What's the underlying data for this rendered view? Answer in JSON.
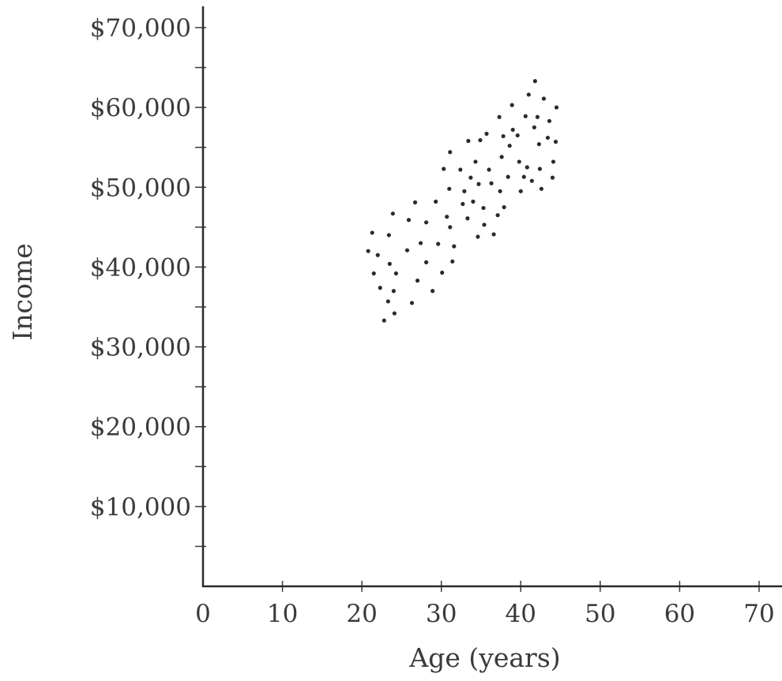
{
  "chart_data": {
    "type": "scatter",
    "title": "",
    "xlabel": "Age (years)",
    "ylabel": "Income",
    "xlim": [
      0,
      70
    ],
    "ylim": [
      0,
      72000
    ],
    "x_ticks": [
      0,
      10,
      20,
      30,
      40,
      50,
      60,
      70
    ],
    "x_tick_labels": [
      "0",
      "10",
      "20",
      "30",
      "40",
      "50",
      "60",
      "70"
    ],
    "y_ticks": [
      10000,
      20000,
      30000,
      40000,
      50000,
      60000,
      70000
    ],
    "y_tick_labels": [
      "$10,000",
      "$20,000",
      "$30,000",
      "$40,000",
      "$50,000",
      "$60,000",
      "$70,000"
    ],
    "y_minor_ticks": [
      5000,
      15000,
      25000,
      35000,
      45000,
      55000,
      65000
    ],
    "grid": false,
    "point_color": "#2b2b2b",
    "axis_color": "#2a2a2a",
    "series": [
      {
        "points": [
          {
            "x": 20.8,
            "y": 42000
          },
          {
            "x": 21.5,
            "y": 39200
          },
          {
            "x": 21.3,
            "y": 44300
          },
          {
            "x": 22.0,
            "y": 41500
          },
          {
            "x": 22.3,
            "y": 37400
          },
          {
            "x": 22.8,
            "y": 33300
          },
          {
            "x": 23.3,
            "y": 35700
          },
          {
            "x": 23.5,
            "y": 40400
          },
          {
            "x": 23.4,
            "y": 44000
          },
          {
            "x": 23.9,
            "y": 46700
          },
          {
            "x": 24.0,
            "y": 37000
          },
          {
            "x": 24.1,
            "y": 34200
          },
          {
            "x": 24.3,
            "y": 39200
          },
          {
            "x": 25.9,
            "y": 45900
          },
          {
            "x": 25.7,
            "y": 42100
          },
          {
            "x": 26.3,
            "y": 35500
          },
          {
            "x": 26.7,
            "y": 48100
          },
          {
            "x": 27.0,
            "y": 38300
          },
          {
            "x": 27.4,
            "y": 43000
          },
          {
            "x": 28.1,
            "y": 45600
          },
          {
            "x": 28.1,
            "y": 40600
          },
          {
            "x": 28.9,
            "y": 37000
          },
          {
            "x": 29.3,
            "y": 48200
          },
          {
            "x": 29.6,
            "y": 42900
          },
          {
            "x": 30.1,
            "y": 39300
          },
          {
            "x": 30.3,
            "y": 52300
          },
          {
            "x": 30.7,
            "y": 46300
          },
          {
            "x": 31.0,
            "y": 49800
          },
          {
            "x": 31.1,
            "y": 45000
          },
          {
            "x": 31.1,
            "y": 54400
          },
          {
            "x": 31.4,
            "y": 40700
          },
          {
            "x": 31.6,
            "y": 42600
          },
          {
            "x": 32.4,
            "y": 52200
          },
          {
            "x": 32.7,
            "y": 47900
          },
          {
            "x": 32.9,
            "y": 49500
          },
          {
            "x": 33.3,
            "y": 46100
          },
          {
            "x": 33.4,
            "y": 55800
          },
          {
            "x": 33.7,
            "y": 51200
          },
          {
            "x": 34.0,
            "y": 48200
          },
          {
            "x": 34.3,
            "y": 53200
          },
          {
            "x": 34.6,
            "y": 43800
          },
          {
            "x": 34.7,
            "y": 50400
          },
          {
            "x": 34.9,
            "y": 55900
          },
          {
            "x": 35.3,
            "y": 47400
          },
          {
            "x": 35.4,
            "y": 45300
          },
          {
            "x": 35.7,
            "y": 56700
          },
          {
            "x": 36.0,
            "y": 52200
          },
          {
            "x": 36.3,
            "y": 50500
          },
          {
            "x": 36.6,
            "y": 44100
          },
          {
            "x": 37.1,
            "y": 46500
          },
          {
            "x": 37.3,
            "y": 58800
          },
          {
            "x": 37.4,
            "y": 49500
          },
          {
            "x": 37.6,
            "y": 53800
          },
          {
            "x": 37.8,
            "y": 56400
          },
          {
            "x": 37.9,
            "y": 47500
          },
          {
            "x": 38.4,
            "y": 51300
          },
          {
            "x": 38.6,
            "y": 55200
          },
          {
            "x": 38.9,
            "y": 60300
          },
          {
            "x": 39.0,
            "y": 57200
          },
          {
            "x": 39.6,
            "y": 56500
          },
          {
            "x": 39.8,
            "y": 53200
          },
          {
            "x": 40.0,
            "y": 49500
          },
          {
            "x": 40.4,
            "y": 51300
          },
          {
            "x": 40.6,
            "y": 58900
          },
          {
            "x": 40.8,
            "y": 52500
          },
          {
            "x": 41.0,
            "y": 61600
          },
          {
            "x": 41.4,
            "y": 50800
          },
          {
            "x": 41.8,
            "y": 63300
          },
          {
            "x": 41.7,
            "y": 57500
          },
          {
            "x": 42.1,
            "y": 58800
          },
          {
            "x": 42.3,
            "y": 55400
          },
          {
            "x": 42.4,
            "y": 52300
          },
          {
            "x": 42.6,
            "y": 49800
          },
          {
            "x": 42.9,
            "y": 61100
          },
          {
            "x": 43.4,
            "y": 56200
          },
          {
            "x": 43.6,
            "y": 58300
          },
          {
            "x": 44.0,
            "y": 51200
          },
          {
            "x": 44.1,
            "y": 53200
          },
          {
            "x": 44.4,
            "y": 55700
          },
          {
            "x": 44.5,
            "y": 60000
          }
        ]
      }
    ]
  }
}
